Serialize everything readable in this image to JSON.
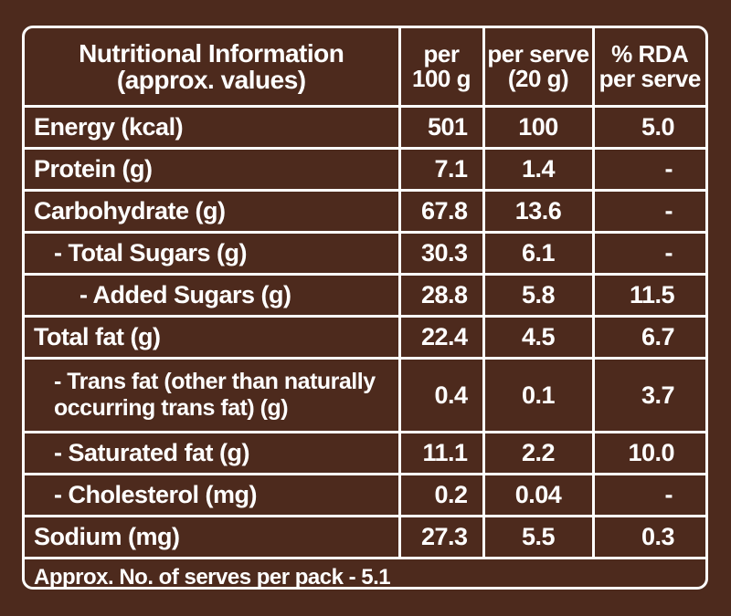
{
  "header": {
    "title_line1": "Nutritional Information",
    "title_line2": "(approx. values)",
    "col_per100_line1": "per",
    "col_per100_line2": "100 g",
    "col_serve_line1": "per serve",
    "col_serve_line2": "(20 g)",
    "col_rda_line1": "% RDA",
    "col_rda_line2": "per serve"
  },
  "rows": [
    {
      "name": "Energy (kcal)",
      "per100": "501",
      "serve": "100",
      "rda": "5.0"
    },
    {
      "name": "Protein (g)",
      "per100": "7.1",
      "serve": "1.4",
      "rda": "-"
    },
    {
      "name": "Carbohydrate (g)",
      "per100": "67.8",
      "serve": "13.6",
      "rda": "-"
    },
    {
      "name": "- Total Sugars (g)",
      "per100": "30.3",
      "serve": "6.1",
      "rda": "-"
    },
    {
      "name": "- Added Sugars (g)",
      "per100": "28.8",
      "serve": "5.8",
      "rda": "11.5"
    },
    {
      "name": "Total fat (g)",
      "per100": "22.4",
      "serve": "4.5",
      "rda": "6.7"
    },
    {
      "name_line1": "- Trans fat (other than naturally",
      "name_line2": "occurring trans fat) (g)",
      "per100": "0.4",
      "serve": "0.1",
      "rda": "3.7"
    },
    {
      "name": "- Saturated fat (g)",
      "per100": "11.1",
      "serve": "2.2",
      "rda": "10.0"
    },
    {
      "name": "- Cholesterol (mg)",
      "per100": "0.2",
      "serve": "0.04",
      "rda": "-"
    },
    {
      "name": "Sodium (mg)",
      "per100": "27.3",
      "serve": "5.5",
      "rda": "0.3"
    }
  ],
  "footer": {
    "serves_text": "Approx. No. of serves per pack - 5.1"
  },
  "colors": {
    "background": "#4d2a1d",
    "foreground": "#ffffff"
  }
}
